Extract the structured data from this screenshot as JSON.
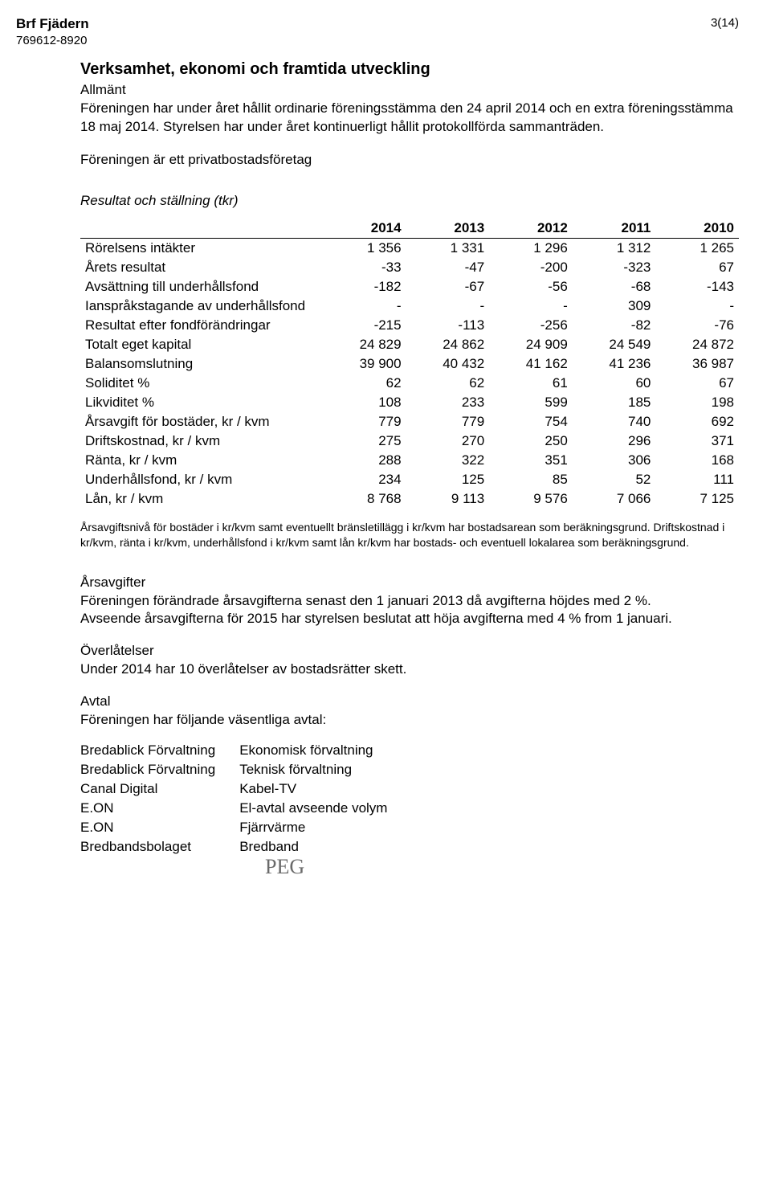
{
  "header": {
    "org_name": "Brf Fjädern",
    "org_number": "769612-8920",
    "page_number": "3(14)"
  },
  "section": {
    "title": "Verksamhet, ekonomi och framtida utveckling",
    "allmant_label": "Allmänt",
    "allmant_p1": "Föreningen har under året hållit ordinarie föreningsstämma den 24 april 2014 och en extra föreningsstämma 18 maj 2014. Styrelsen har under året kontinuerligt hållit protokollförda sammanträden.",
    "allmant_p2": "Föreningen är ett privatbostadsföretag",
    "resultat_heading": "Resultat och ställning (tkr)"
  },
  "table": {
    "columns": [
      "",
      "2014",
      "2013",
      "2012",
      "2011",
      "2010"
    ],
    "rows": [
      [
        "Rörelsens intäkter",
        "1 356",
        "1 331",
        "1 296",
        "1 312",
        "1 265"
      ],
      [
        "Årets resultat",
        "-33",
        "-47",
        "-200",
        "-323",
        "67"
      ],
      [
        "Avsättning till underhållsfond",
        "-182",
        "-67",
        "-56",
        "-68",
        "-143"
      ],
      [
        "Ianspråkstagande av underhållsfond",
        "-",
        "-",
        "-",
        "309",
        "-"
      ],
      [
        "Resultat efter fondförändringar",
        "-215",
        "-113",
        "-256",
        "-82",
        "-76"
      ],
      [
        "Totalt eget kapital",
        "24 829",
        "24 862",
        "24 909",
        "24 549",
        "24 872"
      ],
      [
        "Balansomslutning",
        "39 900",
        "40 432",
        "41 162",
        "41 236",
        "36 987"
      ],
      [
        "Soliditet %",
        "62",
        "62",
        "61",
        "60",
        "67"
      ],
      [
        "Likviditet %",
        "108",
        "233",
        "599",
        "185",
        "198"
      ],
      [
        "Årsavgift för bostäder, kr / kvm",
        "779",
        "779",
        "754",
        "740",
        "692"
      ],
      [
        "Driftskostnad, kr / kvm",
        "275",
        "270",
        "250",
        "296",
        "371"
      ],
      [
        "Ränta, kr / kvm",
        "288",
        "322",
        "351",
        "306",
        "168"
      ],
      [
        "Underhållsfond, kr / kvm",
        "234",
        "125",
        "85",
        "52",
        "111"
      ],
      [
        "Lån, kr / kvm",
        "8 768",
        "9 113",
        "9 576",
        "7 066",
        "7 125"
      ]
    ],
    "col_widths": [
      "290px",
      "auto",
      "auto",
      "auto",
      "auto",
      "auto"
    ],
    "header_fontweight": "bold",
    "border_color": "#000000",
    "fontsize": 17
  },
  "note_text": "Årsavgiftsnivå för bostäder i kr/kvm samt eventuellt bränsletillägg i kr/kvm har bostadsarean som beräkningsgrund. Driftskostnad i kr/kvm, ränta i kr/kvm, underhållsfond i kr/kvm samt lån kr/kvm har bostads- och eventuell lokalarea som beräkningsgrund.",
  "arsavgifter": {
    "heading": "Årsavgifter",
    "p1": "Föreningen förändrade årsavgifterna senast den 1 januari 2013 då avgifterna höjdes med 2 %.",
    "p2": "Avseende årsavgifterna för 2015 har styrelsen beslutat att höja avgifterna med 4 % from 1 januari."
  },
  "overlatelser": {
    "heading": "Överlåtelser",
    "p1": "Under 2014 har 10 överlåtelser av bostadsrätter skett."
  },
  "avtal": {
    "heading": "Avtal",
    "p1": "Föreningen har följande väsentliga avtal:",
    "rows": [
      [
        "Bredablick Förvaltning",
        "Ekonomisk förvaltning"
      ],
      [
        "Bredablick Förvaltning",
        "Teknisk förvaltning"
      ],
      [
        "Canal Digital",
        "Kabel-TV"
      ],
      [
        "E.ON",
        "El-avtal avseende volym"
      ],
      [
        "E.ON",
        "Fjärrvärme"
      ],
      [
        "Bredbandsbolaget",
        "Bredband"
      ]
    ]
  },
  "signature": "PEG",
  "colors": {
    "text": "#000000",
    "background": "#ffffff",
    "signature": "#6a6a6a"
  }
}
